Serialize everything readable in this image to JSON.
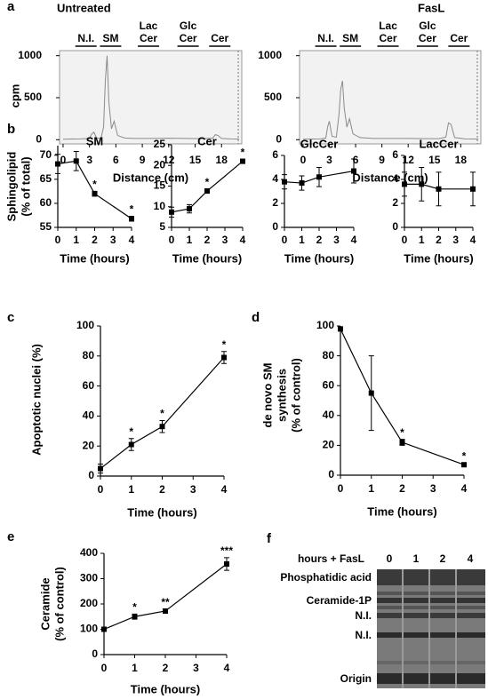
{
  "panel_labels": [
    "a",
    "b",
    "c",
    "d",
    "e",
    "f"
  ],
  "chart_data": [
    {
      "type": "line",
      "title": "Untreated",
      "ylabel": [
        "cpm"
      ],
      "xlabel": "Distance (cm)",
      "annotations": [
        [
          "N.I."
        ],
        [
          "SM"
        ],
        [
          "Lac",
          "Cer"
        ],
        [
          "Glc",
          "Cer"
        ],
        [
          "Cer"
        ]
      ],
      "x": [
        0,
        1,
        2,
        3,
        3.2,
        3.5,
        3.8,
        4.3,
        4.6,
        4.8,
        5.0,
        5.2,
        5.5,
        5.8,
        6.2,
        7,
        8,
        10,
        12,
        14,
        16,
        17,
        17.3,
        17.6,
        18,
        19,
        20
      ],
      "series": [
        {
          "color": "#8a8a8a",
          "values": [
            5,
            8,
            10,
            15,
            60,
            90,
            20,
            15,
            150,
            700,
            1000,
            450,
            130,
            220,
            50,
            20,
            15,
            15,
            18,
            15,
            12,
            20,
            60,
            50,
            15,
            10,
            8
          ]
        }
      ],
      "xlim": [
        -0.4,
        20.3
      ],
      "xticks": [
        0,
        3,
        6,
        9,
        12,
        15,
        18
      ],
      "ylim": [
        -50,
        1060
      ],
      "yticks": [
        0,
        500,
        1000
      ]
    },
    {
      "type": "line",
      "title": "FasL",
      "xlabel": "Distance (cm)",
      "annotations": [
        [
          "N.I."
        ],
        [
          "SM"
        ],
        [
          "Lac",
          "Cer"
        ],
        [
          "Glc",
          "Cer"
        ],
        [
          "Cer"
        ]
      ],
      "x": [
        0,
        1,
        2,
        2.6,
        2.8,
        3.0,
        3.3,
        3.8,
        4.1,
        4.3,
        4.5,
        4.7,
        5.0,
        5.3,
        5.7,
        6.5,
        8,
        10,
        12,
        14,
        15.5,
        16.3,
        16.6,
        16.9,
        17.3,
        18.5,
        20
      ],
      "series": [
        {
          "color": "#8a8a8a",
          "values": [
            5,
            8,
            10,
            20,
            150,
            220,
            40,
            30,
            300,
            600,
            700,
            380,
            150,
            250,
            70,
            25,
            15,
            15,
            15,
            12,
            12,
            30,
            200,
            180,
            25,
            10,
            8
          ]
        }
      ],
      "xlim": [
        -0.4,
        20.3
      ],
      "xticks": [
        0,
        3,
        6,
        9,
        12,
        15,
        18
      ],
      "ylim": [
        -50,
        1060
      ],
      "yticks": [
        0,
        500,
        1000
      ]
    },
    {
      "type": "line",
      "title": "SM",
      "ylabel": [
        "Sphingolipid",
        "(% of total)"
      ],
      "xlabel": "Time (hours)",
      "x": [
        0,
        1,
        2,
        4
      ],
      "series": [
        {
          "color": "#000000",
          "values": [
            68.2,
            68.8,
            62,
            56.8
          ],
          "errors": [
            2,
            2,
            0.5,
            0.5
          ]
        }
      ],
      "significance": [
        null,
        null,
        "*",
        "*"
      ],
      "xlim": [
        0,
        4
      ],
      "xticks": [
        0,
        1,
        2,
        3,
        4
      ],
      "ylim": [
        55,
        72
      ],
      "yticks": [
        55,
        60,
        65,
        70
      ]
    },
    {
      "type": "line",
      "title": "Cer",
      "xlabel": "Time (hours)",
      "x": [
        0,
        1,
        2,
        4
      ],
      "series": [
        {
          "color": "#000000",
          "values": [
            8.7,
            9.5,
            13.8,
            21
          ],
          "errors": [
            1.2,
            1,
            0.5,
            0.5
          ]
        }
      ],
      "significance": [
        null,
        null,
        "*",
        "*"
      ],
      "xlim": [
        0,
        4
      ],
      "xticks": [
        0,
        1,
        2,
        3,
        4
      ],
      "ylim": [
        5,
        25
      ],
      "yticks": [
        5,
        10,
        15,
        20,
        25
      ]
    },
    {
      "type": "line",
      "title": "GlcCer",
      "xlabel": "Time (hours)",
      "x": [
        0,
        1,
        2,
        4
      ],
      "series": [
        {
          "color": "#000000",
          "values": [
            3.8,
            3.7,
            4.2,
            4.7
          ],
          "errors": [
            0.6,
            0.6,
            0.8,
            1
          ]
        }
      ],
      "xlim": [
        0,
        4
      ],
      "xticks": [
        0,
        1,
        2,
        3,
        4
      ],
      "ylim": [
        0,
        6
      ],
      "yticks": [
        0,
        2,
        4,
        6
      ]
    },
    {
      "type": "line",
      "title": "LacCer",
      "xlabel": "Time (hours)",
      "x": [
        0,
        1,
        2,
        4
      ],
      "series": [
        {
          "color": "#000000",
          "values": [
            3.6,
            3.6,
            3.2,
            3.2
          ],
          "errors": [
            1,
            1.4,
            1.4,
            1.4
          ]
        }
      ],
      "xlim": [
        0,
        4
      ],
      "xticks": [
        0,
        1,
        2,
        3,
        4
      ],
      "ylim": [
        0,
        6
      ],
      "yticks": [
        0,
        2,
        4,
        6
      ]
    },
    {
      "type": "line",
      "ylabel": [
        "Apoptotic nuclei (%)"
      ],
      "xlabel": "Time (hours)",
      "x": [
        0,
        1,
        2,
        4
      ],
      "series": [
        {
          "color": "#000000",
          "values": [
            5,
            21,
            33,
            79
          ],
          "errors": [
            3,
            4,
            4,
            4
          ]
        }
      ],
      "significance": [
        null,
        "*",
        "*",
        "*"
      ],
      "xlim": [
        0,
        4
      ],
      "xticks": [
        0,
        1,
        2,
        3,
        4
      ],
      "ylim": [
        0,
        100
      ],
      "yticks": [
        0,
        20,
        40,
        60,
        80,
        100
      ]
    },
    {
      "type": "line",
      "ylabel": [
        "de novo SM",
        "synthesis",
        "(% of control)"
      ],
      "xlabel": "Time (hours)",
      "x": [
        0,
        1,
        2,
        4
      ],
      "series": [
        {
          "color": "#000000",
          "values": [
            98,
            55,
            22,
            7
          ],
          "errors": [
            0,
            25,
            2,
            1
          ]
        }
      ],
      "significance": [
        null,
        null,
        "*",
        "*"
      ],
      "xlim": [
        0,
        4
      ],
      "xticks": [
        0,
        1,
        2,
        3,
        4
      ],
      "ylim": [
        0,
        100
      ],
      "yticks": [
        0,
        20,
        40,
        60,
        80,
        100
      ]
    },
    {
      "type": "line",
      "ylabel": [
        "Ceramide",
        "(% of control)"
      ],
      "xlabel": "Time (hours)",
      "x": [
        0,
        1,
        2,
        4
      ],
      "series": [
        {
          "color": "#000000",
          "values": [
            100,
            150,
            172,
            358
          ],
          "errors": [
            5,
            10,
            8,
            25
          ]
        }
      ],
      "significance": [
        null,
        "*",
        "**",
        "***"
      ],
      "xlim": [
        0,
        4
      ],
      "xticks": [
        0,
        1,
        2,
        3,
        4
      ],
      "ylim": [
        0,
        400
      ],
      "yticks": [
        0,
        100,
        200,
        300,
        400
      ]
    }
  ],
  "gel": {
    "header": "hours + FasL",
    "lanes": [
      "0",
      "1",
      "2",
      "4"
    ],
    "bands": [
      "Phosphatidic acid",
      "Ceramide-1P",
      "N.I.",
      "N.I.",
      "Origin"
    ]
  }
}
